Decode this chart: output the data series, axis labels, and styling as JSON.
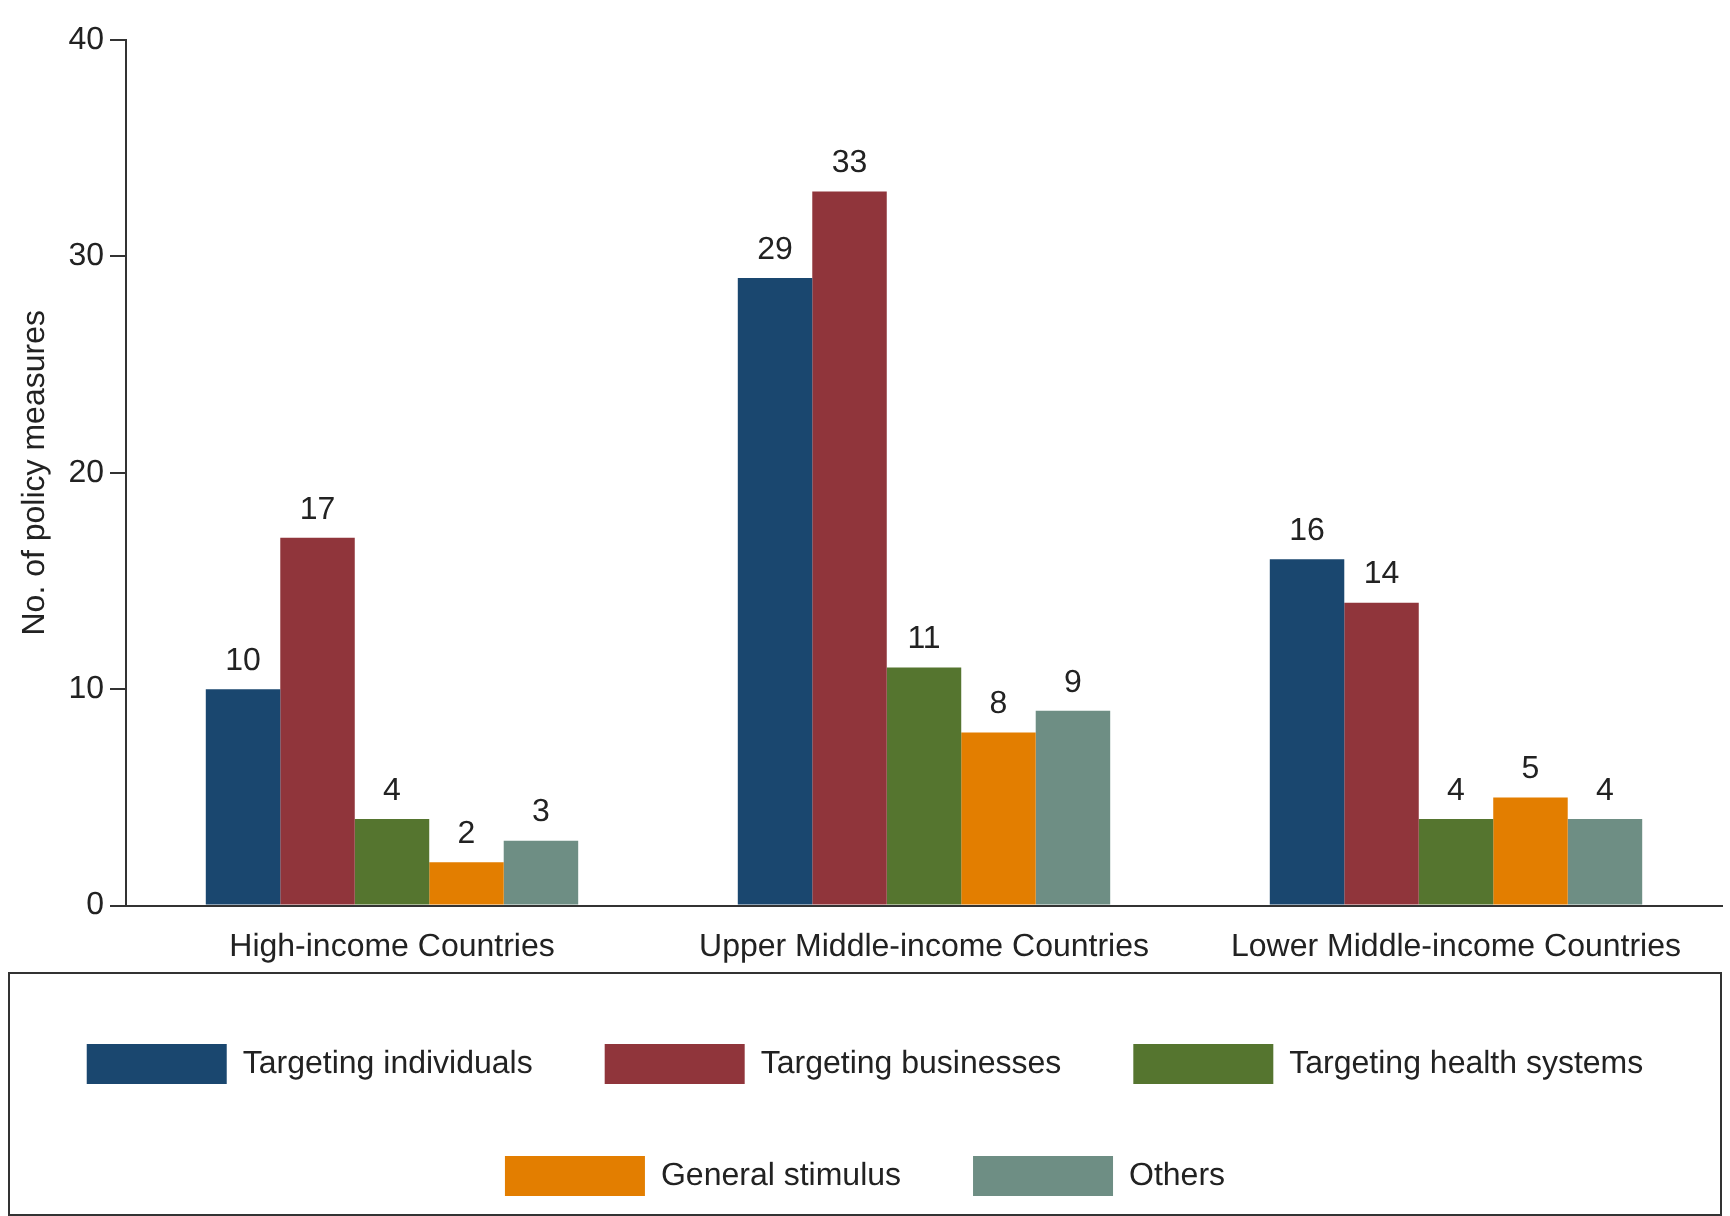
{
  "chart_data": {
    "type": "bar",
    "ylabel": "No. of policy measures",
    "categories": [
      "High-income Countries",
      "Upper Middle-income Countries",
      "Lower Middle-income Countries"
    ],
    "series": [
      {
        "name": "Targeting individuals",
        "color": "#1a476f",
        "values": [
          10,
          29,
          16
        ]
      },
      {
        "name": "Targeting businesses",
        "color": "#90353b",
        "values": [
          17,
          33,
          14
        ]
      },
      {
        "name": "Targeting health systems",
        "color": "#55752f",
        "values": [
          4,
          11,
          4
        ]
      },
      {
        "name": "General stimulus",
        "color": "#e37e00",
        "values": [
          2,
          8,
          5
        ]
      },
      {
        "name": "Others",
        "color": "#6e8e84",
        "values": [
          3,
          9,
          4
        ]
      }
    ],
    "ylim": [
      0,
      40
    ],
    "yticks": [
      0,
      10,
      20,
      30,
      40
    ],
    "grid": false,
    "data_labels": true,
    "legend": "bottom"
  }
}
